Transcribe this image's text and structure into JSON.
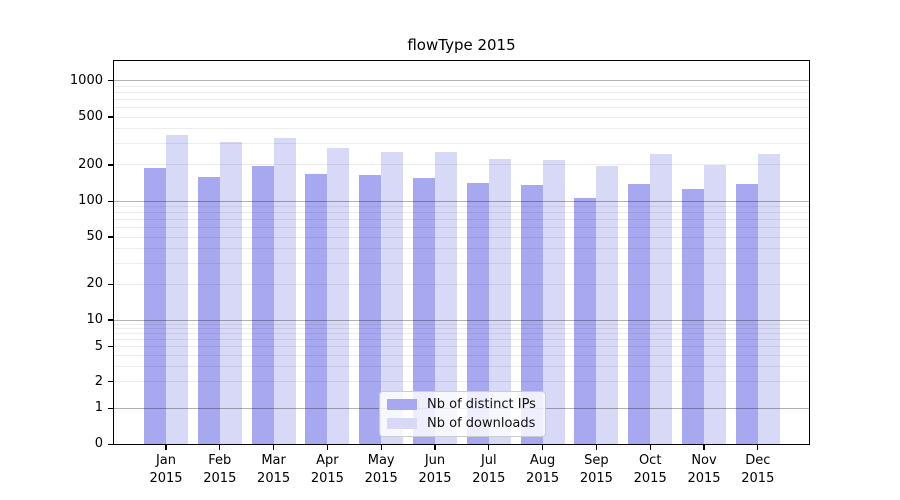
{
  "chart_data": {
    "type": "bar",
    "title": "flowType 2015",
    "categories": [
      "Jan 2015",
      "Feb 2015",
      "Mar 2015",
      "Apr 2015",
      "May 2015",
      "Jun 2015",
      "Jul 2015",
      "Aug 2015",
      "Sep 2015",
      "Oct 2015",
      "Nov 2015",
      "Dec 2015"
    ],
    "series": [
      {
        "name": "Nb of distinct IPs",
        "color": "#a8a8f0",
        "values": [
          190,
          159,
          197,
          170,
          165,
          155,
          142,
          136,
          107,
          140,
          126,
          138
        ]
      },
      {
        "name": "Nb of downloads",
        "color": "#d8d8f7",
        "values": [
          357,
          311,
          335,
          277,
          256,
          258,
          224,
          221,
          198,
          247,
          201,
          248
        ]
      }
    ],
    "y_axis": {
      "scale": "log-with-zero-baseline",
      "tick_values": [
        0,
        1,
        2,
        5,
        10,
        20,
        50,
        100,
        200,
        500,
        1000
      ],
      "tick_labels": [
        "0",
        "1",
        "2",
        "5",
        "10",
        "20",
        "50",
        "100",
        "200",
        "500",
        "1000"
      ],
      "ylim": [
        0,
        1000
      ],
      "minor_gridlines": true
    },
    "x_axis": {
      "label_line_1": "month",
      "label_line_2": "year"
    },
    "legend": {
      "position": "inside-bottom-center",
      "entries": [
        "Nb of distinct IPs",
        "Nb of downloads"
      ]
    },
    "grid": "on"
  },
  "colors": {
    "bar_distinct_ips": "#a8a8f0",
    "bar_downloads": "#d8d8f7",
    "major_gridline": "#b5b5b5",
    "minor_gridline": "#ececec",
    "axis": "#000000",
    "legend_border": "#cccccc",
    "background": "#ffffff"
  }
}
